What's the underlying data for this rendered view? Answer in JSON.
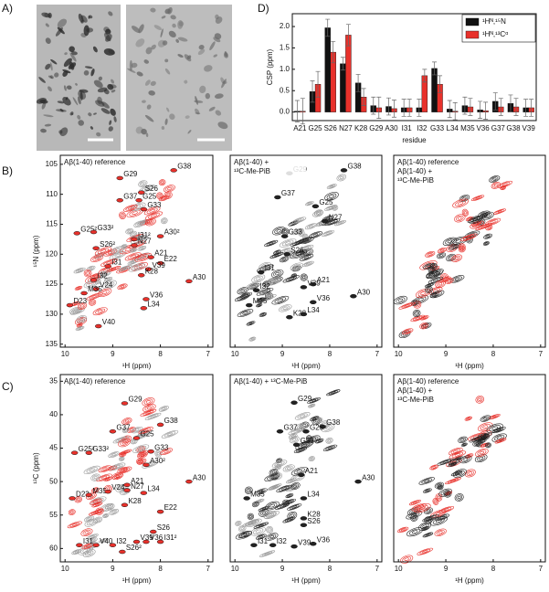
{
  "panels": {
    "a": "A)",
    "b": "B)",
    "c": "C)",
    "d": "D)"
  },
  "chart_data": [
    {
      "type": "bar",
      "ylabel": "CSP (ppm)",
      "xlabel": "residue",
      "categories": [
        "A21",
        "G25",
        "S26",
        "N27",
        "K28",
        "G29",
        "A30",
        "I31",
        "I32",
        "G33",
        "L34",
        "M35",
        "V36",
        "G37",
        "G38",
        "V39"
      ],
      "series": [
        {
          "name": "¹Hᴺ,¹⁵N",
          "color": "#111111",
          "values": [
            0.02,
            0.48,
            1.97,
            1.13,
            0.68,
            0.15,
            0.13,
            0.1,
            0.1,
            1.02,
            0.07,
            0.15,
            0.05,
            0.25,
            0.2,
            0.1
          ],
          "errors": [
            0.25,
            0.25,
            0.2,
            0.15,
            0.2,
            0.2,
            0.2,
            0.2,
            0.2,
            0.15,
            0.2,
            0.2,
            0.2,
            0.2,
            0.2,
            0.2
          ]
        },
        {
          "name": "¹Hᴺ,¹³Cᵅ",
          "color": "#e8312b",
          "values": [
            0.02,
            0.65,
            1.4,
            1.8,
            0.35,
            0.1,
            0.08,
            0.1,
            0.85,
            0.65,
            0.02,
            0.12,
            0.03,
            0.12,
            0.12,
            0.1
          ],
          "errors": [
            0.3,
            0.3,
            0.25,
            0.25,
            0.2,
            0.25,
            0.2,
            0.2,
            0.15,
            0.2,
            0.2,
            0.2,
            0.2,
            0.2,
            0.2,
            0.2
          ]
        }
      ],
      "ylim": [
        -0.2,
        2.3
      ],
      "yticks": [
        {
          "value": 0,
          "label": "0.0"
        },
        {
          "value": 0.5,
          "label": "0.5"
        },
        {
          "value": 1,
          "label": "1.0"
        },
        {
          "value": 1.5,
          "label": "1.5"
        },
        {
          "value": 2,
          "label": "2.0"
        }
      ]
    },
    {
      "type": "spectrum",
      "xlabel": "¹H (ppm)",
      "ylabel": "¹⁵N (ppm)",
      "xlim": [
        6.9,
        10.1
      ],
      "xreverse": true,
      "ylim": [
        103.5,
        135.5
      ],
      "yreverse": true,
      "xticks": [
        10,
        9,
        8,
        7
      ],
      "yticks": [
        105,
        110,
        115,
        120,
        125,
        130,
        135
      ],
      "legend": [
        {
          "text": "Aβ(1-40) reference",
          "color": "#e8312b"
        }
      ],
      "contour_colors": [
        "#e8312b",
        "#999999"
      ],
      "peak_color": "#e8312b",
      "peaks": [
        {
          "label": "G29",
          "x": 8.85,
          "y": 107.3
        },
        {
          "label": "G38",
          "x": 7.72,
          "y": 106.0
        },
        {
          "label": "S26",
          "x": 8.4,
          "y": 109.7
        },
        {
          "label": "G25",
          "x": 8.45,
          "y": 111.0
        },
        {
          "label": "G37",
          "x": 8.85,
          "y": 111.0
        },
        {
          "label": "G33",
          "x": 8.35,
          "y": 112.5
        },
        {
          "label": "N27",
          "x": 8.55,
          "y": 118.5
        },
        {
          "label": "A21",
          "x": 8.2,
          "y": 120.5
        },
        {
          "label": "E22",
          "x": 8.0,
          "y": 121.5
        },
        {
          "label": "V39",
          "x": 8.25,
          "y": 122.5
        },
        {
          "label": "K28",
          "x": 8.4,
          "y": 123.5
        },
        {
          "label": "I31",
          "x": 9.1,
          "y": 122.0
        },
        {
          "label": "I32",
          "x": 9.4,
          "y": 124.3
        },
        {
          "label": "V24",
          "x": 9.35,
          "y": 125.8
        },
        {
          "label": "M35",
          "x": 9.6,
          "y": 126.5
        },
        {
          "label": "D23",
          "x": 9.9,
          "y": 128.5
        },
        {
          "label": "V36",
          "x": 8.3,
          "y": 127.5
        },
        {
          "label": "L34",
          "x": 8.35,
          "y": 129.0
        },
        {
          "label": "V40",
          "x": 9.3,
          "y": 132.0
        },
        {
          "label": "A30",
          "x": 7.4,
          "y": 124.5
        },
        {
          "label": "G25²",
          "x": 9.75,
          "y": 116.5,
          "color": "#3a3aa0"
        },
        {
          "label": "G33²",
          "x": 9.4,
          "y": 116.3,
          "color": "#3a3aa0"
        },
        {
          "label": "A30²",
          "x": 8.0,
          "y": 117.0,
          "color": "#3a3aa0"
        },
        {
          "label": "I31²",
          "x": 8.55,
          "y": 117.5,
          "color": "#3a3aa0"
        },
        {
          "label": "S26²",
          "x": 9.35,
          "y": 119.0,
          "color": "#3a3aa0"
        }
      ]
    },
    {
      "type": "spectrum",
      "xlabel": "¹H (ppm)",
      "xlim": [
        6.9,
        10.1
      ],
      "xreverse": true,
      "ylim": [
        103.5,
        135.5
      ],
      "yreverse": true,
      "xticks": [
        10,
        9,
        8,
        7
      ],
      "legend": [
        {
          "text": "Aβ(1-40) +",
          "color": "#222222"
        },
        {
          "text": "¹³C-Me-PiB",
          "color": "#222222"
        }
      ],
      "contour_colors": [
        "#222222",
        "#999999"
      ],
      "peak_color": "#222222",
      "peaks": [
        {
          "label": "G29",
          "x": 8.85,
          "y": 106.5
        },
        {
          "label": "G38",
          "x": 7.7,
          "y": 106.0
        },
        {
          "label": "G37",
          "x": 9.1,
          "y": 110.5
        },
        {
          "label": "G25",
          "x": 8.3,
          "y": 112.0
        },
        {
          "label": "N27",
          "x": 8.1,
          "y": 114.5
        },
        {
          "label": "G33",
          "x": 8.95,
          "y": 117.0
        },
        {
          "label": "S26",
          "x": 8.9,
          "y": 120.0
        },
        {
          "label": "I31",
          "x": 9.45,
          "y": 123.0
        },
        {
          "label": "I32",
          "x": 9.55,
          "y": 126.0
        },
        {
          "label": "M35",
          "x": 9.7,
          "y": 128.5
        },
        {
          "label": "K28",
          "x": 8.85,
          "y": 130.5
        },
        {
          "label": "A21",
          "x": 8.35,
          "y": 125.0
        },
        {
          "label": "V39",
          "x": 8.55,
          "y": 125.5
        },
        {
          "label": "V36",
          "x": 8.35,
          "y": 128.0
        },
        {
          "label": "L34",
          "x": 8.55,
          "y": 130.0
        },
        {
          "label": "A30",
          "x": 7.5,
          "y": 127.0
        }
      ]
    },
    {
      "type": "spectrum",
      "xlabel": "¹H (ppm)",
      "xlim": [
        6.9,
        10.1
      ],
      "xreverse": true,
      "ylim": [
        103.5,
        135.5
      ],
      "yreverse": true,
      "xticks": [
        10,
        9,
        8,
        7
      ],
      "legend": [
        {
          "text": "Aβ(1-40) reference",
          "color": "#e8312b"
        },
        {
          "text": "Aβ(1-40) +",
          "color": "#222222"
        },
        {
          "text": "¹³C-Me-PiB",
          "color": "#222222"
        }
      ],
      "contour_colors": [
        "#e8312b",
        "#222222"
      ]
    },
    {
      "type": "spectrum",
      "xlabel": "¹H (ppm)",
      "ylabel": "¹³C (ppm)",
      "xlim": [
        6.9,
        10.1
      ],
      "xreverse": true,
      "ylim": [
        34,
        62
      ],
      "yreverse": true,
      "xticks": [
        10,
        9,
        8,
        7
      ],
      "yticks": [
        35,
        40,
        45,
        50,
        55,
        60
      ],
      "legend": [
        {
          "text": "Aβ(1-40) reference",
          "color": "#e8312b"
        }
      ],
      "contour_colors": [
        "#e8312b",
        "#999999"
      ],
      "peak_color": "#e8312b",
      "peaks": [
        {
          "label": "G29",
          "x": 8.75,
          "y": 38.3
        },
        {
          "label": "G37",
          "x": 9.0,
          "y": 42.5
        },
        {
          "label": "G38",
          "x": 8.0,
          "y": 41.5
        },
        {
          "label": "G25",
          "x": 8.5,
          "y": 43.5
        },
        {
          "label": "G33",
          "x": 8.2,
          "y": 45.5
        },
        {
          "label": "G25²",
          "x": 9.8,
          "y": 45.7,
          "color": "#3a3aa0"
        },
        {
          "label": "G33²",
          "x": 9.5,
          "y": 45.7,
          "color": "#3a3aa0"
        },
        {
          "label": "A30²",
          "x": 8.3,
          "y": 47.5,
          "color": "#3a3aa0"
        },
        {
          "label": "A21",
          "x": 8.7,
          "y": 50.5
        },
        {
          "label": "A30",
          "x": 7.4,
          "y": 50.0
        },
        {
          "label": "D23",
          "x": 9.85,
          "y": 52.5
        },
        {
          "label": "M35",
          "x": 9.5,
          "y": 52.0
        },
        {
          "label": "V24",
          "x": 9.1,
          "y": 51.5
        },
        {
          "label": "N27",
          "x": 8.7,
          "y": 51.3
        },
        {
          "label": "L34",
          "x": 8.35,
          "y": 51.7
        },
        {
          "label": "K28",
          "x": 8.75,
          "y": 53.5
        },
        {
          "label": "E22",
          "x": 8.0,
          "y": 54.5
        },
        {
          "label": "S26",
          "x": 8.15,
          "y": 57.5
        },
        {
          "label": "I31",
          "x": 9.7,
          "y": 59.5
        },
        {
          "label": "V40",
          "x": 9.35,
          "y": 59.5
        },
        {
          "label": "I32",
          "x": 9.0,
          "y": 59.5
        },
        {
          "label": "S26²",
          "x": 8.8,
          "y": 60.5,
          "color": "#3a3aa0"
        },
        {
          "label": "V39",
          "x": 8.5,
          "y": 59.0
        },
        {
          "label": "V36",
          "x": 8.3,
          "y": 59.0
        },
        {
          "label": "I31²",
          "x": 8.0,
          "y": 59.0,
          "color": "#3a3aa0"
        }
      ]
    },
    {
      "type": "spectrum",
      "xlabel": "¹H (ppm)",
      "xlim": [
        6.9,
        10.1
      ],
      "xreverse": true,
      "ylim": [
        34,
        62
      ],
      "yreverse": true,
      "xticks": [
        10,
        9,
        8,
        7
      ],
      "legend": [
        {
          "text": "Aβ(1-40) + ¹³C-Me-PiB",
          "color": "#222222"
        }
      ],
      "contour_colors": [
        "#222222",
        "#999999"
      ],
      "peak_color": "#222222",
      "peaks": [
        {
          "label": "G29",
          "x": 8.75,
          "y": 38.2
        },
        {
          "label": "G37",
          "x": 9.05,
          "y": 42.5
        },
        {
          "label": "G38",
          "x": 8.15,
          "y": 41.8
        },
        {
          "label": "G25",
          "x": 8.5,
          "y": 42.5
        },
        {
          "label": "G33",
          "x": 8.7,
          "y": 44.5
        },
        {
          "label": "A21",
          "x": 8.6,
          "y": 49.0
        },
        {
          "label": "A30",
          "x": 7.4,
          "y": 50.0
        },
        {
          "label": "M35",
          "x": 9.75,
          "y": 52.5
        },
        {
          "label": "L34",
          "x": 8.55,
          "y": 52.5
        },
        {
          "label": "K28",
          "x": 8.55,
          "y": 55.5
        },
        {
          "label": "S26",
          "x": 8.55,
          "y": 56.5
        },
        {
          "label": "I31",
          "x": 9.6,
          "y": 59.5
        },
        {
          "label": "I32",
          "x": 9.2,
          "y": 59.5
        },
        {
          "label": "V39",
          "x": 8.75,
          "y": 59.7
        },
        {
          "label": "V36",
          "x": 8.35,
          "y": 59.3
        }
      ]
    },
    {
      "type": "spectrum",
      "xlabel": "¹H (ppm)",
      "xlim": [
        6.9,
        10.1
      ],
      "xreverse": true,
      "ylim": [
        34,
        62
      ],
      "yreverse": true,
      "xticks": [
        10,
        9,
        8,
        7
      ],
      "legend": [
        {
          "text": "Aβ(1-40) reference",
          "color": "#e8312b"
        },
        {
          "text": "Aβ(1-40) +",
          "color": "#222222"
        },
        {
          "text": "¹³C-Me-PiB",
          "color": "#222222"
        }
      ],
      "contour_colors": [
        "#e8312b",
        "#222222"
      ]
    }
  ]
}
